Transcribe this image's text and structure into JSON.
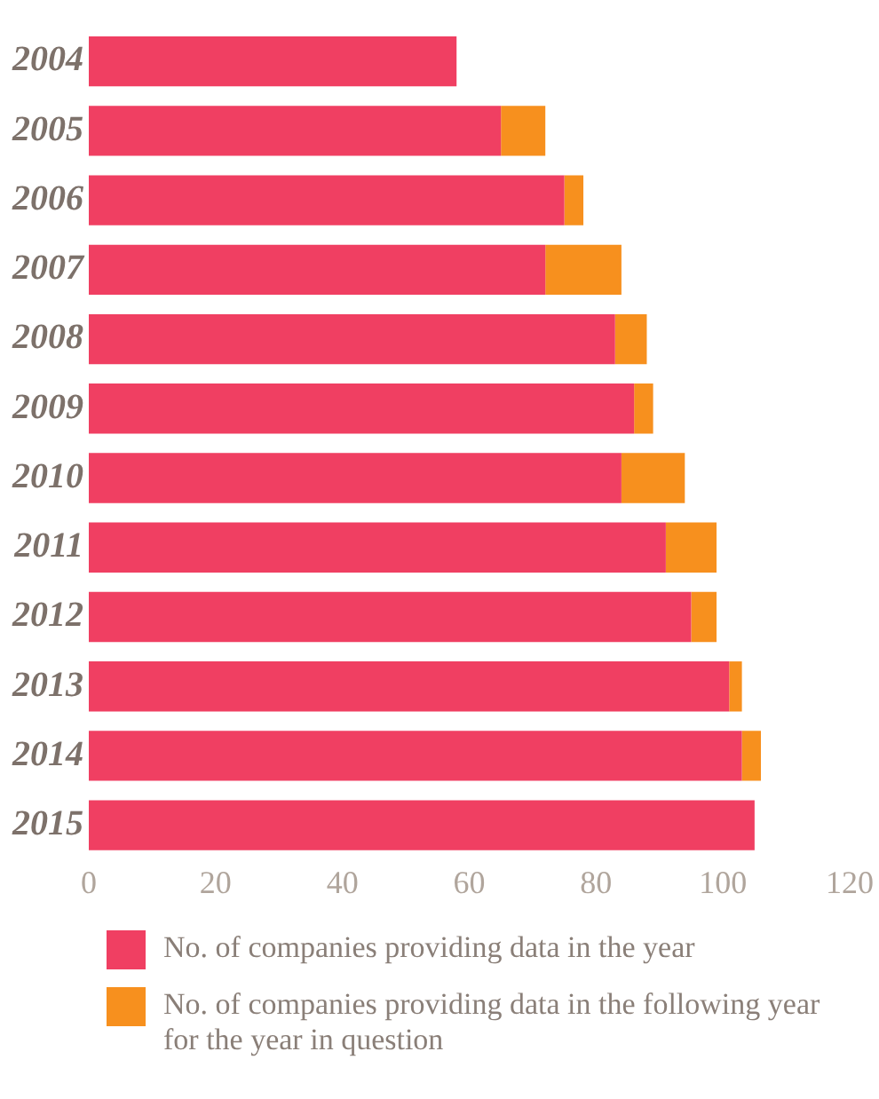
{
  "chart_data": {
    "type": "bar",
    "orientation": "horizontal",
    "stacked": true,
    "categories": [
      "2004",
      "2005",
      "2006",
      "2007",
      "2008",
      "2009",
      "2010",
      "2011",
      "2012",
      "2013",
      "2014",
      "2015"
    ],
    "series": [
      {
        "name": "No. of companies providing data in the year",
        "color": "#f03f62",
        "values": [
          58,
          65,
          75,
          72,
          83,
          86,
          84,
          91,
          95,
          101,
          103,
          105
        ]
      },
      {
        "name": "No. of companies providing data in the following year for the year in question",
        "color": "#f7901e",
        "values": [
          null,
          7,
          3,
          12,
          5,
          3,
          10,
          8,
          4,
          2,
          3,
          null
        ]
      }
    ],
    "xlim": [
      0,
      120
    ],
    "xticks": [
      0,
      20,
      40,
      60,
      80,
      100,
      120
    ],
    "grid": false,
    "legend": "bottom"
  }
}
